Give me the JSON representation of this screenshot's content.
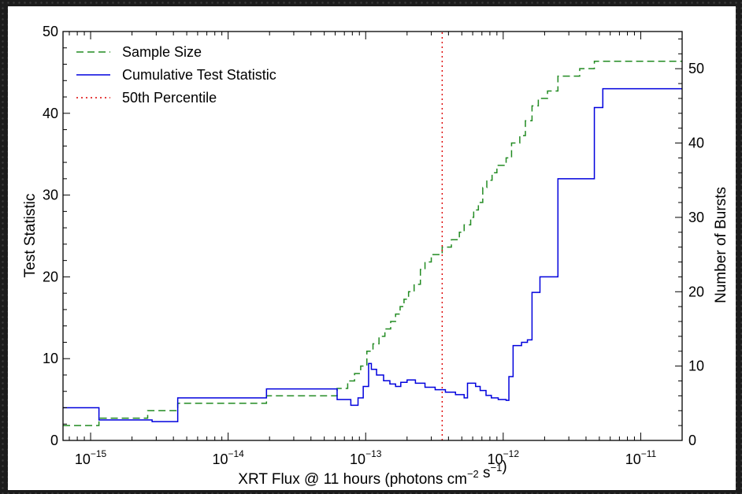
{
  "chart_data": {
    "type": "line",
    "xlabel": "XRT Flux @ 11 hours (photons cm⁻² s⁻¹)",
    "ylabel_left": "Test Statistic",
    "ylabel_right": "Number of Bursts",
    "x_scale": "log",
    "xlim": [
      6.3e-16,
      2e-11
    ],
    "ylim_left": [
      0,
      50
    ],
    "ylim_right": [
      0,
      55
    ],
    "x_ticks": [
      {
        "value": 1e-15,
        "base": "10",
        "exp": "−15"
      },
      {
        "value": 1e-14,
        "base": "10",
        "exp": "−14"
      },
      {
        "value": 1e-13,
        "base": "10",
        "exp": "−13"
      },
      {
        "value": 1e-12,
        "base": "10",
        "exp": "−12"
      },
      {
        "value": 1e-11,
        "base": "10",
        "exp": "−11"
      }
    ],
    "y_ticks_left": [
      0,
      10,
      20,
      30,
      40,
      50
    ],
    "y_ticks_right": [
      0,
      10,
      20,
      30,
      40,
      50
    ],
    "legend_position": "top-left",
    "grid": false,
    "series": [
      {
        "name": "Sample Size",
        "axis": "right",
        "style": "dashed",
        "color": "#228b22",
        "x": [
          6.3e-16,
          1.15e-15,
          2.6e-15,
          4.3e-15,
          1.9e-14,
          6.2e-14,
          7.4e-14,
          8.3e-14,
          9.2e-14,
          1.02e-13,
          1.13e-13,
          1.25e-13,
          1.38e-13,
          1.52e-13,
          1.65e-13,
          1.78e-13,
          1.9e-13,
          2.05e-13,
          2.25e-13,
          2.5e-13,
          2.7e-13,
          3e-13,
          3.6e-13,
          4.2e-13,
          4.8e-13,
          5.2e-13,
          5.8e-13,
          6.1e-13,
          6.6e-13,
          7.1e-13,
          7.6e-13,
          8.3e-13,
          9e-13,
          1.05e-12,
          1.15e-12,
          1.32e-12,
          1.45e-12,
          1.62e-12,
          1.8e-12,
          2.1e-12,
          2.5e-12,
          3.6e-12,
          4.6e-12,
          5.5e-12,
          2e-11
        ],
        "y": [
          2,
          3,
          4,
          5,
          6,
          7,
          8,
          9,
          10,
          12,
          13,
          14,
          15,
          16,
          17,
          18,
          19,
          20,
          21,
          23,
          24,
          25,
          26,
          27,
          28,
          29,
          30,
          31,
          32,
          34,
          35,
          36,
          37,
          38,
          40,
          41,
          43,
          45,
          46,
          47,
          49,
          50,
          51,
          51,
          51
        ]
      },
      {
        "name": "Cumulative Test Statistic",
        "axis": "left",
        "style": "solid",
        "color": "#0000dd",
        "x": [
          6.3e-16,
          1.15e-15,
          2.8e-15,
          4.3e-15,
          1.9e-14,
          6.2e-14,
          7.8e-14,
          8.8e-14,
          9.6e-14,
          1.05e-13,
          1.1e-13,
          1.2e-13,
          1.35e-13,
          1.5e-13,
          1.65e-13,
          1.8e-13,
          2e-13,
          2.3e-13,
          2.7e-13,
          3.2e-13,
          3.8e-13,
          4.5e-13,
          5.2e-13,
          5.5e-13,
          6.3e-13,
          6.8e-13,
          7.5e-13,
          8.2e-13,
          9.2e-13,
          1.05e-12,
          1.1e-12,
          1.18e-12,
          1.36e-12,
          1.5e-12,
          1.62e-12,
          1.85e-12,
          2.25e-12,
          2.5e-12,
          2.6e-12,
          4.6e-12,
          5.3e-12,
          2e-11
        ],
        "y": [
          4.0,
          2.5,
          2.3,
          5.2,
          6.3,
          5.0,
          4.3,
          5.2,
          6.6,
          9.4,
          8.7,
          8.0,
          7.3,
          6.9,
          6.6,
          7.1,
          7.4,
          7.0,
          6.5,
          6.2,
          5.9,
          5.6,
          5.2,
          7.0,
          6.6,
          6.1,
          5.5,
          5.2,
          5.0,
          4.9,
          7.8,
          11.6,
          12.0,
          12.3,
          18.1,
          20.0,
          20.0,
          32.0,
          32.0,
          40.7,
          43.0,
          43.0
        ]
      },
      {
        "name": "50th Percentile",
        "axis": "left",
        "style": "dotted",
        "color": "#dd0000",
        "x": [
          3.6e-13,
          3.6e-13
        ],
        "y": [
          0,
          50
        ]
      }
    ]
  }
}
